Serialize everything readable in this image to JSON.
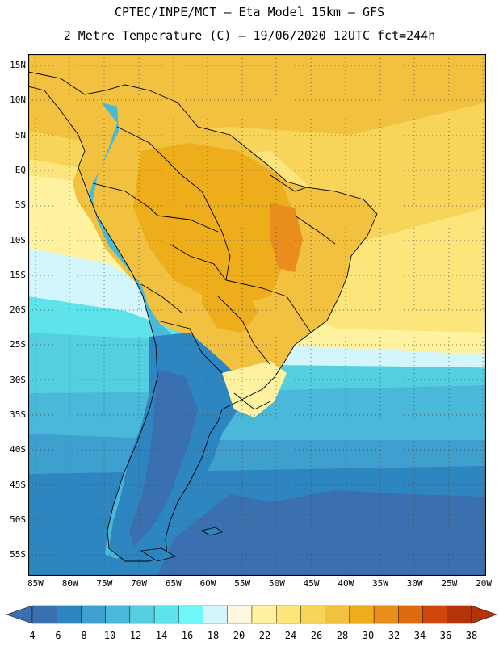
{
  "title": {
    "line1": "CPTEC/INPE/MCT  –   Eta Model 15km  –  GFS",
    "line2": "2 Metre Temperature (C) – 19/06/2020 12UTC fct=244h"
  },
  "lat_labels": [
    "15N",
    "10N",
    "5N",
    "EQ",
    "5S",
    "10S",
    "15S",
    "20S",
    "25S",
    "30S",
    "35S",
    "40S",
    "45S",
    "50S",
    "55S"
  ],
  "lon_labels": [
    "85W",
    "80W",
    "75W",
    "70W",
    "65W",
    "60W",
    "55W",
    "50W",
    "45W",
    "40W",
    "35W",
    "30W",
    "25W",
    "20W"
  ],
  "colorbar": {
    "labels": [
      "4",
      "6",
      "8",
      "10",
      "12",
      "14",
      "16",
      "18",
      "20",
      "22",
      "24",
      "26",
      "28",
      "30",
      "32",
      "34",
      "36",
      "38"
    ],
    "colors": [
      "#3a6fb0",
      "#2e86c1",
      "#3fa0cf",
      "#4ab8d8",
      "#55cfe0",
      "#5ee3ea",
      "#6ff7f7",
      "#d2f6fb",
      "#fff7e0",
      "#fff2a0",
      "#fce57a",
      "#f7d45a",
      "#f1c13f",
      "#eead1a",
      "#e98e1c",
      "#df6a10",
      "#cf460c",
      "#b4340a"
    ]
  },
  "icons": {
    "left_arrow": "colorbar-low-arrow-icon",
    "right_arrow": "colorbar-high-arrow-icon"
  }
}
